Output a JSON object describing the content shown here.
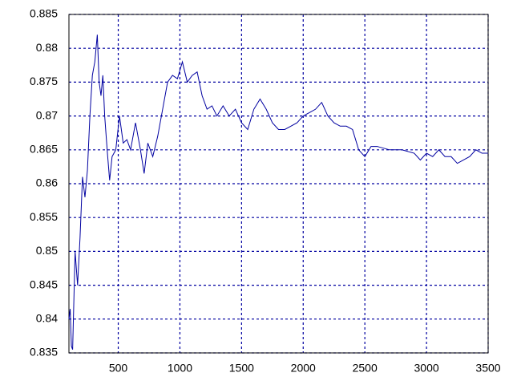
{
  "chart_data": {
    "type": "line",
    "x": [
      100,
      110,
      120,
      130,
      150,
      170,
      190,
      210,
      230,
      250,
      270,
      290,
      310,
      330,
      345,
      360,
      375,
      390,
      410,
      430,
      450,
      480,
      510,
      540,
      570,
      600,
      640,
      680,
      710,
      740,
      780,
      820,
      860,
      900,
      940,
      980,
      1020,
      1060,
      1100,
      1140,
      1180,
      1220,
      1260,
      1300,
      1350,
      1400,
      1450,
      1500,
      1550,
      1600,
      1650,
      1700,
      1750,
      1800,
      1850,
      1900,
      1950,
      2000,
      2050,
      2100,
      2150,
      2200,
      2250,
      2300,
      2350,
      2400,
      2450,
      2500,
      2550,
      2600,
      2700,
      2800,
      2900,
      2950,
      3000,
      3050,
      3100,
      3150,
      3200,
      3250,
      3300,
      3350,
      3400,
      3450,
      3500
    ],
    "values": [
      0.84,
      0.8415,
      0.836,
      0.8355,
      0.85,
      0.845,
      0.852,
      0.861,
      0.858,
      0.862,
      0.87,
      0.876,
      0.878,
      0.882,
      0.875,
      0.873,
      0.876,
      0.87,
      0.865,
      0.8605,
      0.864,
      0.865,
      0.87,
      0.866,
      0.8665,
      0.865,
      0.869,
      0.865,
      0.8615,
      0.866,
      0.864,
      0.867,
      0.871,
      0.875,
      0.876,
      0.8755,
      0.878,
      0.875,
      0.876,
      0.8765,
      0.873,
      0.871,
      0.8715,
      0.87,
      0.8715,
      0.87,
      0.871,
      0.869,
      0.868,
      0.871,
      0.8725,
      0.871,
      0.869,
      0.868,
      0.868,
      0.8685,
      0.869,
      0.87,
      0.8705,
      0.871,
      0.872,
      0.87,
      0.869,
      0.8685,
      0.8685,
      0.868,
      0.865,
      0.864,
      0.8655,
      0.8655,
      0.865,
      0.865,
      0.8645,
      0.8635,
      0.8645,
      0.864,
      0.865,
      0.864,
      0.864,
      0.863,
      0.8635,
      0.864,
      0.865,
      0.8645,
      0.8645
    ],
    "color": "#0000a0",
    "xlim": [
      100,
      3500
    ],
    "xticks": [
      500,
      1000,
      1500,
      2000,
      2500,
      3000,
      3500
    ],
    "ylim": [
      0.835,
      0.885
    ],
    "yticks": [
      0.835,
      0.84,
      0.845,
      0.85,
      0.855,
      0.86,
      0.865,
      0.87,
      0.875,
      0.88,
      0.885
    ],
    "grid": true
  }
}
